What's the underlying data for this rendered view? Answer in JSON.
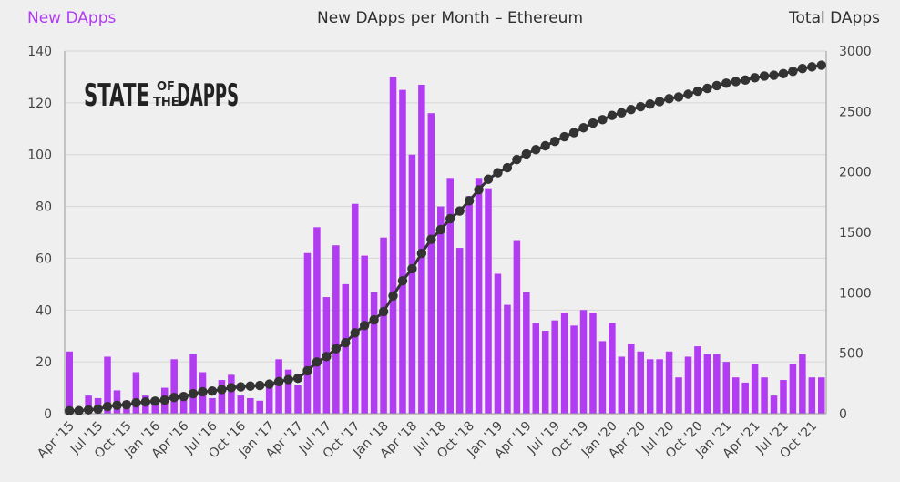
{
  "header": {
    "left_label": "New DApps",
    "title": "New DApps per Month – Ethereum",
    "right_label": "Total DApps"
  },
  "logo": {
    "word1": "STATE",
    "small_top": "OF",
    "small_bottom": "THE",
    "word2": "DAPPS"
  },
  "colors": {
    "bar": "#b13cf2",
    "line": "#333333",
    "marker": "#333333",
    "left_label": "#b13cf2",
    "text": "#444444"
  },
  "chart_data": {
    "type": "bar",
    "title": "New DApps per Month – Ethereum",
    "ylabel": "New DApps",
    "y2label": "Total DApps",
    "ylim": [
      0,
      140
    ],
    "y2lim": [
      0,
      3000
    ],
    "yticks": [
      0,
      20,
      40,
      60,
      80,
      100,
      120,
      140
    ],
    "y2ticks": [
      0,
      500,
      1000,
      1500,
      2000,
      2500,
      3000
    ],
    "xtick_labels": [
      "Apr '15",
      "Jul '15",
      "Oct '15",
      "Jan '16",
      "Apr '16",
      "Jul '16",
      "Oct '16",
      "Jan '17",
      "Apr '17",
      "Jul '17",
      "Oct '17",
      "Jan '18",
      "Apr '18",
      "Jul '18",
      "Oct '18",
      "Jan '19",
      "Apr '19",
      "Jul '19",
      "Oct '19",
      "Jan '20",
      "Apr '20",
      "Jul '20",
      "Oct '20",
      "Jan '21",
      "Apr '21",
      "Jul '21",
      "Oct '21"
    ],
    "xtick_every": 3,
    "grid": true,
    "categories": [
      "Apr 2015",
      "May 2015",
      "Jun 2015",
      "Jul 2015",
      "Aug 2015",
      "Sep 2015",
      "Oct 2015",
      "Nov 2015",
      "Dec 2015",
      "Jan 2016",
      "Feb 2016",
      "Mar 2016",
      "Apr 2016",
      "May 2016",
      "Jun 2016",
      "Jul 2016",
      "Aug 2016",
      "Sep 2016",
      "Oct 2016",
      "Nov 2016",
      "Dec 2016",
      "Jan 2017",
      "Feb 2017",
      "Mar 2017",
      "Apr 2017",
      "May 2017",
      "Jun 2017",
      "Jul 2017",
      "Aug 2017",
      "Sep 2017",
      "Oct 2017",
      "Nov 2017",
      "Dec 2017",
      "Jan 2018",
      "Feb 2018",
      "Mar 2018",
      "Apr 2018",
      "May 2018",
      "Jun 2018",
      "Jul 2018",
      "Aug 2018",
      "Sep 2018",
      "Oct 2018",
      "Nov 2018",
      "Dec 2018",
      "Jan 2019",
      "Feb 2019",
      "Mar 2019",
      "Apr 2019",
      "May 2019",
      "Jun 2019",
      "Jul 2019",
      "Aug 2019",
      "Sep 2019",
      "Oct 2019",
      "Nov 2019",
      "Dec 2019",
      "Jan 2020",
      "Feb 2020",
      "Mar 2020",
      "Apr 2020",
      "May 2020",
      "Jun 2020",
      "Jul 2020",
      "Aug 2020",
      "Sep 2020",
      "Oct 2020",
      "Nov 2020",
      "Dec 2020",
      "Jan 2021",
      "Feb 2021",
      "Mar 2021",
      "Apr 2021",
      "May 2021",
      "Jun 2021",
      "Jul 2021",
      "Aug 2021",
      "Sep 2021",
      "Oct 2021",
      "Nov 2021"
    ],
    "series": [
      {
        "name": "New DApps",
        "type": "bar",
        "axis": "left",
        "values": [
          24,
          1,
          7,
          6,
          22,
          9,
          5,
          16,
          7,
          6,
          10,
          21,
          8,
          23,
          16,
          6,
          13,
          15,
          7,
          6,
          5,
          11,
          21,
          17,
          11,
          62,
          72,
          45,
          65,
          50,
          81,
          61,
          47,
          68,
          130,
          125,
          100,
          127,
          116,
          80,
          91,
          64,
          84,
          91,
          87,
          54,
          42,
          67,
          47,
          35,
          32,
          36,
          39,
          34,
          40,
          39,
          28,
          35,
          22,
          27,
          24,
          21,
          21,
          24,
          14,
          22,
          26,
          23,
          23,
          20,
          14,
          12,
          19,
          14,
          7,
          13,
          19,
          23,
          14,
          14
        ]
      },
      {
        "name": "Total DApps",
        "type": "line",
        "axis": "right",
        "values": [
          24,
          25,
          32,
          38,
          60,
          69,
          74,
          90,
          97,
          103,
          113,
          134,
          142,
          165,
          181,
          187,
          200,
          215,
          222,
          228,
          233,
          244,
          265,
          282,
          293,
          355,
          427,
          472,
          537,
          587,
          668,
          729,
          776,
          844,
          974,
          1099,
          1199,
          1326,
          1442,
          1522,
          1613,
          1677,
          1761,
          1852,
          1939,
          1993,
          2035,
          2102,
          2149,
          2184,
          2216,
          2252,
          2291,
          2325,
          2365,
          2404,
          2432,
          2467,
          2489,
          2516,
          2540,
          2561,
          2582,
          2606,
          2620,
          2642,
          2668,
          2691,
          2714,
          2734,
          2748,
          2760,
          2779,
          2793,
          2800,
          2813,
          2832,
          2855,
          2869,
          2883
        ]
      }
    ]
  }
}
